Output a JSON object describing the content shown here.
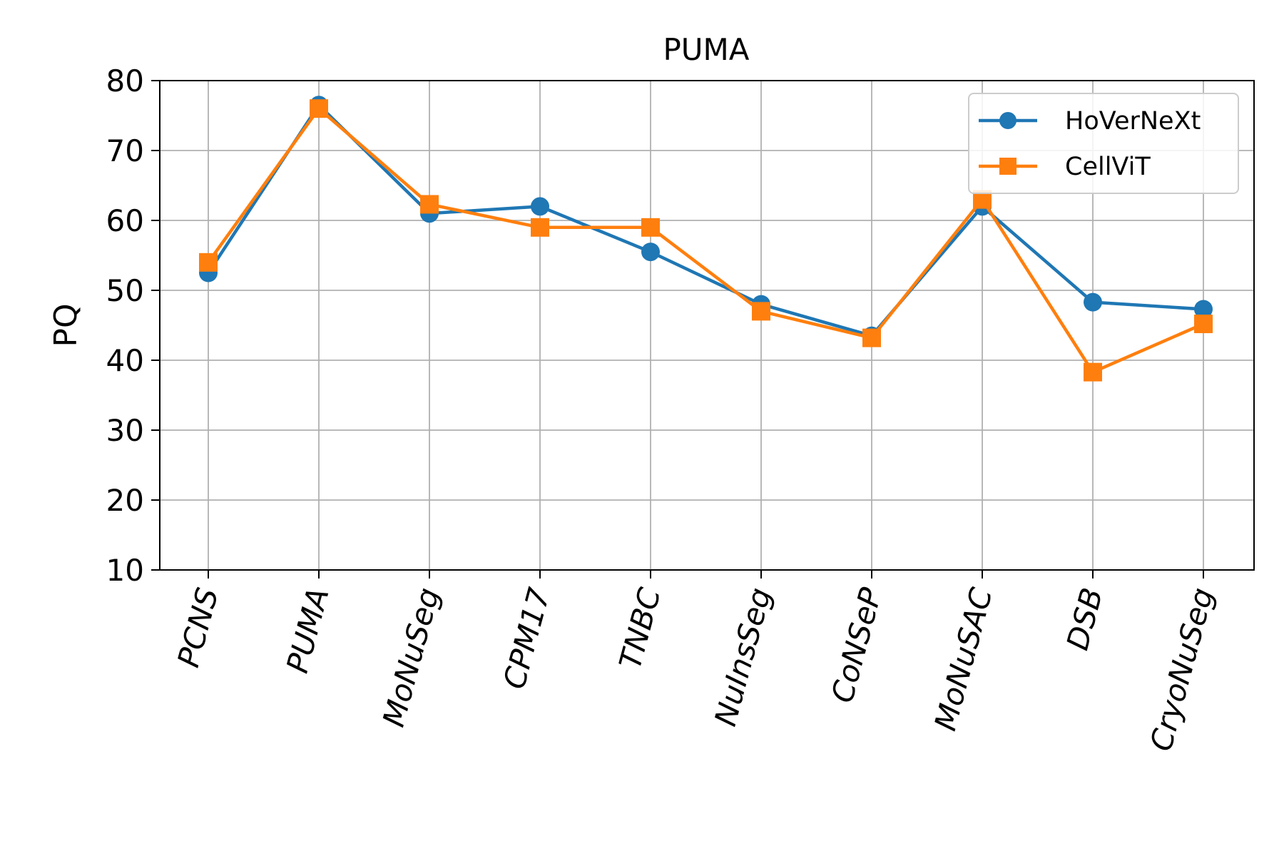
{
  "chart_data": {
    "type": "line",
    "title": "PUMA",
    "xlabel": "",
    "ylabel": "PQ",
    "ylim": [
      10,
      80
    ],
    "yticks": [
      10,
      20,
      30,
      40,
      50,
      60,
      70,
      80
    ],
    "grid": true,
    "legend_position": "top-right",
    "categories": [
      "PCNS",
      "PUMA",
      "MoNuSeg",
      "CPM17",
      "TNBC",
      "NuInsSeg",
      "CoNSeP",
      "MoNuSAC",
      "DSB",
      "CryoNuSeg"
    ],
    "series": [
      {
        "name": "HoVerNeXt",
        "color": "#1f77b4",
        "marker": "circle",
        "values": [
          52.5,
          76.5,
          61.0,
          62.0,
          55.5,
          48.0,
          43.5,
          62.0,
          48.3,
          47.3
        ]
      },
      {
        "name": "CellViT",
        "color": "#ff7f0e",
        "marker": "square",
        "values": [
          54.0,
          76.0,
          62.3,
          59.0,
          59.0,
          47.0,
          43.2,
          63.0,
          38.3,
          45.2
        ]
      }
    ]
  }
}
